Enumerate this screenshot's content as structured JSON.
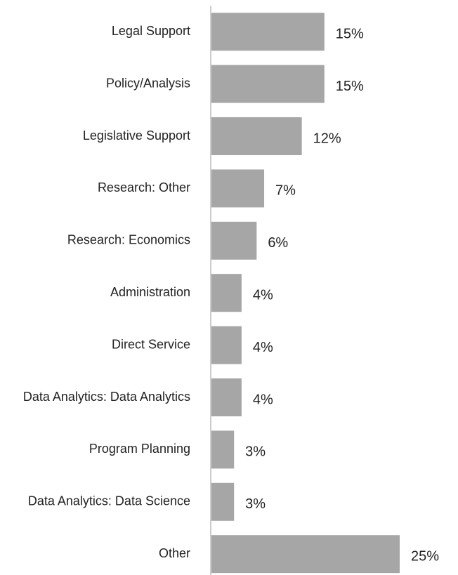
{
  "chart_data": {
    "type": "barh",
    "categories": [
      "Legal Support",
      "Policy/Analysis",
      "Legislative Support",
      "Research: Other",
      "Research: Economics",
      "Administration",
      "Direct Service",
      "Data Analytics: Data Analytics",
      "Program Planning",
      "Data Analytics: Data Science",
      "Other"
    ],
    "values": [
      15,
      15,
      12,
      7,
      6,
      4,
      4,
      4,
      3,
      3,
      25
    ],
    "value_labels": [
      "15%",
      "15%",
      "12%",
      "7%",
      "6%",
      "4%",
      "4%",
      "4%",
      "3%",
      "3%",
      "25%"
    ],
    "color": "#a6a6a6"
  }
}
